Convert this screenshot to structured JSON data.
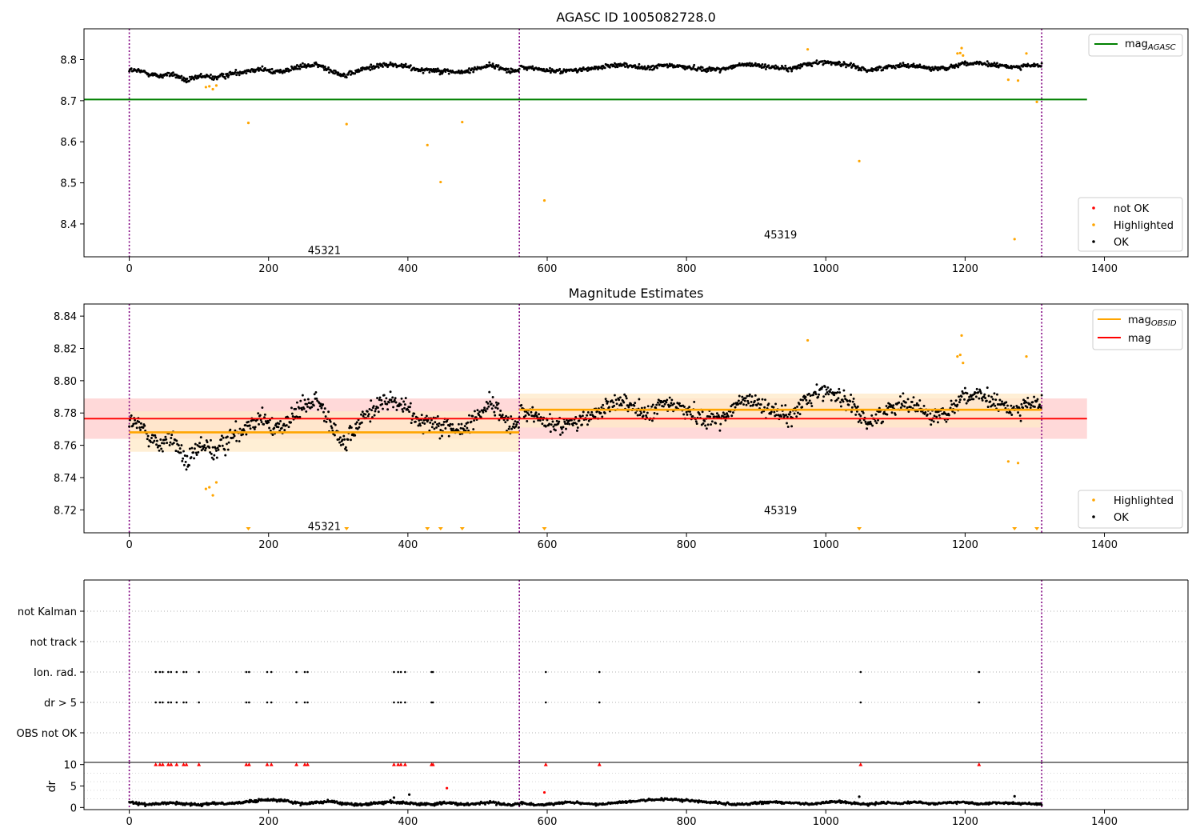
{
  "chart_data": [
    {
      "type": "scatter",
      "title": "AGASC ID 1005082728.0",
      "xlim": [
        -65,
        1520
      ],
      "ylim": [
        8.32,
        8.875
      ],
      "xticks": [
        0,
        200,
        400,
        600,
        800,
        1000,
        1200,
        1400
      ],
      "yticks": [
        8.4,
        8.5,
        8.6,
        8.7,
        8.8
      ],
      "vlines": [
        0,
        560,
        1310
      ],
      "series": [
        {
          "name": "OK",
          "color": "#000000",
          "segments": [
            {
              "x0": 0,
              "x1": 560,
              "y": [
                8.775,
                8.77,
                8.76,
                8.765,
                8.748,
                8.76,
                8.756,
                8.765,
                8.772,
                8.778,
                8.77,
                8.775,
                8.784,
                8.787,
                8.774,
                8.76,
                8.775,
                8.784,
                8.788,
                8.784,
                8.776,
                8.775,
                8.772,
                8.768,
                8.778,
                8.787,
                8.776,
                8.772
              ],
              "noise": 0.007
            },
            {
              "x0": 562,
              "x1": 1310,
              "y": [
                8.782,
                8.778,
                8.772,
                8.773,
                8.776,
                8.78,
                8.788,
                8.785,
                8.778,
                8.786,
                8.784,
                8.779,
                8.776,
                8.778,
                8.788,
                8.786,
                8.782,
                8.776,
                8.788,
                8.794,
                8.792,
                8.784,
                8.774,
                8.78,
                8.787,
                8.785,
                8.778,
                8.78,
                8.791,
                8.79,
                8.787,
                8.782,
                8.785,
                8.786
              ],
              "noise": 0.006
            }
          ]
        },
        {
          "name": "Highlighted",
          "color": "#ffa500",
          "points": [
            [
              110,
              8.733
            ],
            [
              115,
              8.735
            ],
            [
              120,
              8.728
            ],
            [
              125,
              8.737
            ],
            [
              171,
              8.646
            ],
            [
              312,
              8.643
            ],
            [
              428,
              8.592
            ],
            [
              447,
              8.502
            ],
            [
              478,
              8.648
            ],
            [
              596,
              8.457
            ],
            [
              974,
              8.825
            ],
            [
              1048,
              8.553
            ],
            [
              1189,
              8.815
            ],
            [
              1193,
              8.816
            ],
            [
              1195,
              8.828
            ],
            [
              1197,
              8.81
            ],
            [
              1262,
              8.751
            ],
            [
              1271,
              8.363
            ],
            [
              1276,
              8.749
            ],
            [
              1288,
              8.815
            ],
            [
              1303,
              8.697
            ]
          ]
        },
        {
          "name": "not OK",
          "color": "#ff0000",
          "points": []
        }
      ],
      "hlines": [
        {
          "name": "mag_AGASC",
          "label_main": "mag",
          "label_sub": "AGASC",
          "y": 8.703,
          "x0": -65,
          "x1": 1375,
          "color": "#008000"
        }
      ],
      "obsid_labels": [
        {
          "text": "45321",
          "x": 280,
          "y": 8.337
        },
        {
          "text": "45319",
          "x": 935,
          "y": 8.375
        }
      ],
      "legend_lines": [
        {
          "series": "mag_AGASC",
          "main": "mag",
          "sub": "AGASC",
          "color": "#008000"
        }
      ],
      "legend_points": [
        {
          "label": "not OK",
          "color": "#ff0000"
        },
        {
          "label": "Highlighted",
          "color": "#ffa500"
        },
        {
          "label": "OK",
          "color": "#000000"
        }
      ]
    },
    {
      "type": "scatter",
      "title": "Magnitude Estimates",
      "xlim": [
        -65,
        1520
      ],
      "ylim": [
        8.7058,
        8.8475
      ],
      "xticks": [
        0,
        200,
        400,
        600,
        800,
        1000,
        1200,
        1400
      ],
      "yticks": [
        8.72,
        8.74,
        8.76,
        8.78,
        8.8,
        8.82,
        8.84
      ],
      "vlines": [
        0,
        560,
        1310
      ],
      "bands": [
        {
          "x0": -65,
          "x1": 1375,
          "y0": 8.764,
          "y1": 8.789,
          "color": "#ffcccc"
        },
        {
          "x0": 0,
          "x1": 560,
          "y0": 8.756,
          "y1": 8.781,
          "color": "#ffe9c7"
        },
        {
          "x0": 560,
          "x1": 1310,
          "y0": 8.771,
          "y1": 8.792,
          "color": "#ffe9c7"
        }
      ],
      "lines": [
        {
          "name": "mag_OBSID",
          "x0": 0,
          "x1": 560,
          "y": 8.768,
          "color": "#ffa500",
          "width": 2.6
        },
        {
          "name": "mag_OBSID",
          "x0": 560,
          "x1": 1310,
          "y": 8.782,
          "color": "#ffa500",
          "width": 2.6
        },
        {
          "name": "mag",
          "x0": -65,
          "x1": 1375,
          "y": 8.7765,
          "color": "#ff0000",
          "width": 1.8
        }
      ],
      "series": [
        {
          "name": "OK",
          "color": "#000000",
          "segments": [
            {
              "x0": 0,
              "x1": 560,
              "y": [
                8.775,
                8.77,
                8.76,
                8.765,
                8.748,
                8.76,
                8.756,
                8.765,
                8.772,
                8.778,
                8.77,
                8.775,
                8.784,
                8.787,
                8.774,
                8.76,
                8.775,
                8.784,
                8.788,
                8.784,
                8.776,
                8.775,
                8.772,
                8.768,
                8.778,
                8.787,
                8.776,
                8.772
              ],
              "noise": 0.007
            },
            {
              "x0": 562,
              "x1": 1310,
              "y": [
                8.782,
                8.778,
                8.772,
                8.773,
                8.776,
                8.78,
                8.788,
                8.785,
                8.778,
                8.786,
                8.784,
                8.779,
                8.776,
                8.778,
                8.788,
                8.786,
                8.782,
                8.776,
                8.788,
                8.794,
                8.792,
                8.784,
                8.774,
                8.78,
                8.787,
                8.785,
                8.778,
                8.78,
                8.791,
                8.79,
                8.787,
                8.782,
                8.785,
                8.786
              ],
              "noise": 0.006
            }
          ]
        },
        {
          "name": "Highlighted",
          "color": "#ffa500",
          "points": [
            [
              110,
              8.733
            ],
            [
              115,
              8.734
            ],
            [
              120,
              8.729
            ],
            [
              125,
              8.737
            ],
            [
              974,
              8.825
            ],
            [
              1189,
              8.815
            ],
            [
              1193,
              8.816
            ],
            [
              1195,
              8.828
            ],
            [
              1197,
              8.811
            ],
            [
              1262,
              8.75
            ],
            [
              1276,
              8.749
            ],
            [
              1288,
              8.815
            ]
          ]
        }
      ],
      "offscale_markers": {
        "color": "#ffa500",
        "x": [
          171,
          312,
          428,
          447,
          478,
          596,
          1048,
          1271,
          1303
        ]
      },
      "obsid_labels": [
        {
          "text": "45321",
          "x": 280,
          "y": 8.71
        },
        {
          "text": "45319",
          "x": 935,
          "y": 8.72
        }
      ],
      "legend_lines": [
        {
          "series": "mag_OBSID",
          "main": "mag",
          "sub": "OBSID",
          "color": "#ffa500"
        },
        {
          "series": "mag",
          "main": "mag",
          "sub": "",
          "color": "#ff0000"
        }
      ],
      "legend_points": [
        {
          "label": "Highlighted",
          "color": "#ffa500"
        },
        {
          "label": "OK",
          "color": "#000000"
        }
      ]
    },
    {
      "type": "scatter",
      "title": "",
      "xlim": [
        -65,
        1520
      ],
      "categories": [
        "not Kalman",
        "not track",
        "Ion. rad.",
        "dr > 5",
        "OBS not OK"
      ],
      "vlines": [
        0,
        560,
        1310
      ],
      "flags": {
        "Ion. rad.": [
          38,
          44,
          48,
          56,
          60,
          68,
          78,
          82,
          100,
          168,
          172,
          198,
          204,
          240,
          252,
          256,
          380,
          386,
          390,
          396,
          434,
          436,
          598,
          675,
          1050,
          1220
        ],
        "dr > 5": [
          38,
          44,
          48,
          56,
          60,
          68,
          78,
          82,
          100,
          168,
          172,
          198,
          204,
          240,
          252,
          256,
          380,
          386,
          390,
          396,
          434,
          436,
          598,
          675,
          1050,
          1220
        ]
      },
      "flag_color": "#000000"
    },
    {
      "type": "scatter",
      "title": "",
      "xlim": [
        -65,
        1520
      ],
      "ylim": [
        -0.5,
        10.5
      ],
      "ylabel": "dr",
      "yticks": [
        0,
        5,
        10
      ],
      "xticks": [
        0,
        200,
        400,
        600,
        800,
        1000,
        1200,
        1400
      ],
      "vlines": [
        0,
        560,
        1310
      ],
      "series": [
        {
          "name": "dr",
          "color": "#000000",
          "segments": [
            {
              "x0": 0,
              "x1": 560,
              "y": [
                1.2,
                0.7,
                0.9,
                1.1,
                0.8,
                0.6,
                1.0,
                0.9,
                1.3,
                1.6,
                1.8,
                1.4,
                0.9,
                1.2,
                1.4,
                0.8,
                0.6,
                1.0,
                1.2,
                1.1,
                0.8,
                0.7,
                1.1,
                0.7,
                0.9,
                1.2,
                0.6,
                0.8
              ],
              "noise": 0.35
            },
            {
              "x0": 562,
              "x1": 1310,
              "y": [
                1.0,
                0.6,
                0.8,
                1.3,
                0.9,
                0.7,
                1.1,
                1.4,
                1.7,
                1.9,
                1.8,
                1.5,
                1.2,
                0.9,
                0.7,
                1.0,
                1.3,
                1.1,
                0.8,
                1.0,
                1.4,
                1.0,
                0.7,
                1.2,
                0.9,
                1.3,
                0.8,
                1.1,
                1.2,
                0.8,
                1.1,
                1.0,
                0.9,
                0.7
              ],
              "noise": 0.3
            }
          ]
        },
        {
          "name": "dr outliers",
          "color": "#000000",
          "points": [
            [
              380,
              2.3
            ],
            [
              402,
              3.0
            ],
            [
              1048,
              2.5
            ],
            [
              1271,
              2.6
            ]
          ]
        },
        {
          "name": "dr highlighted",
          "color": "#ff0000",
          "points": [
            [
              456,
              4.5
            ],
            [
              596,
              3.5
            ]
          ]
        }
      ],
      "clipped_markers": {
        "color": "#ff0000",
        "y": 10,
        "x": [
          38,
          44,
          48,
          56,
          60,
          68,
          78,
          82,
          100,
          168,
          172,
          198,
          204,
          240,
          252,
          256,
          380,
          386,
          390,
          396,
          434,
          436,
          598,
          675,
          1050,
          1220
        ]
      }
    }
  ]
}
